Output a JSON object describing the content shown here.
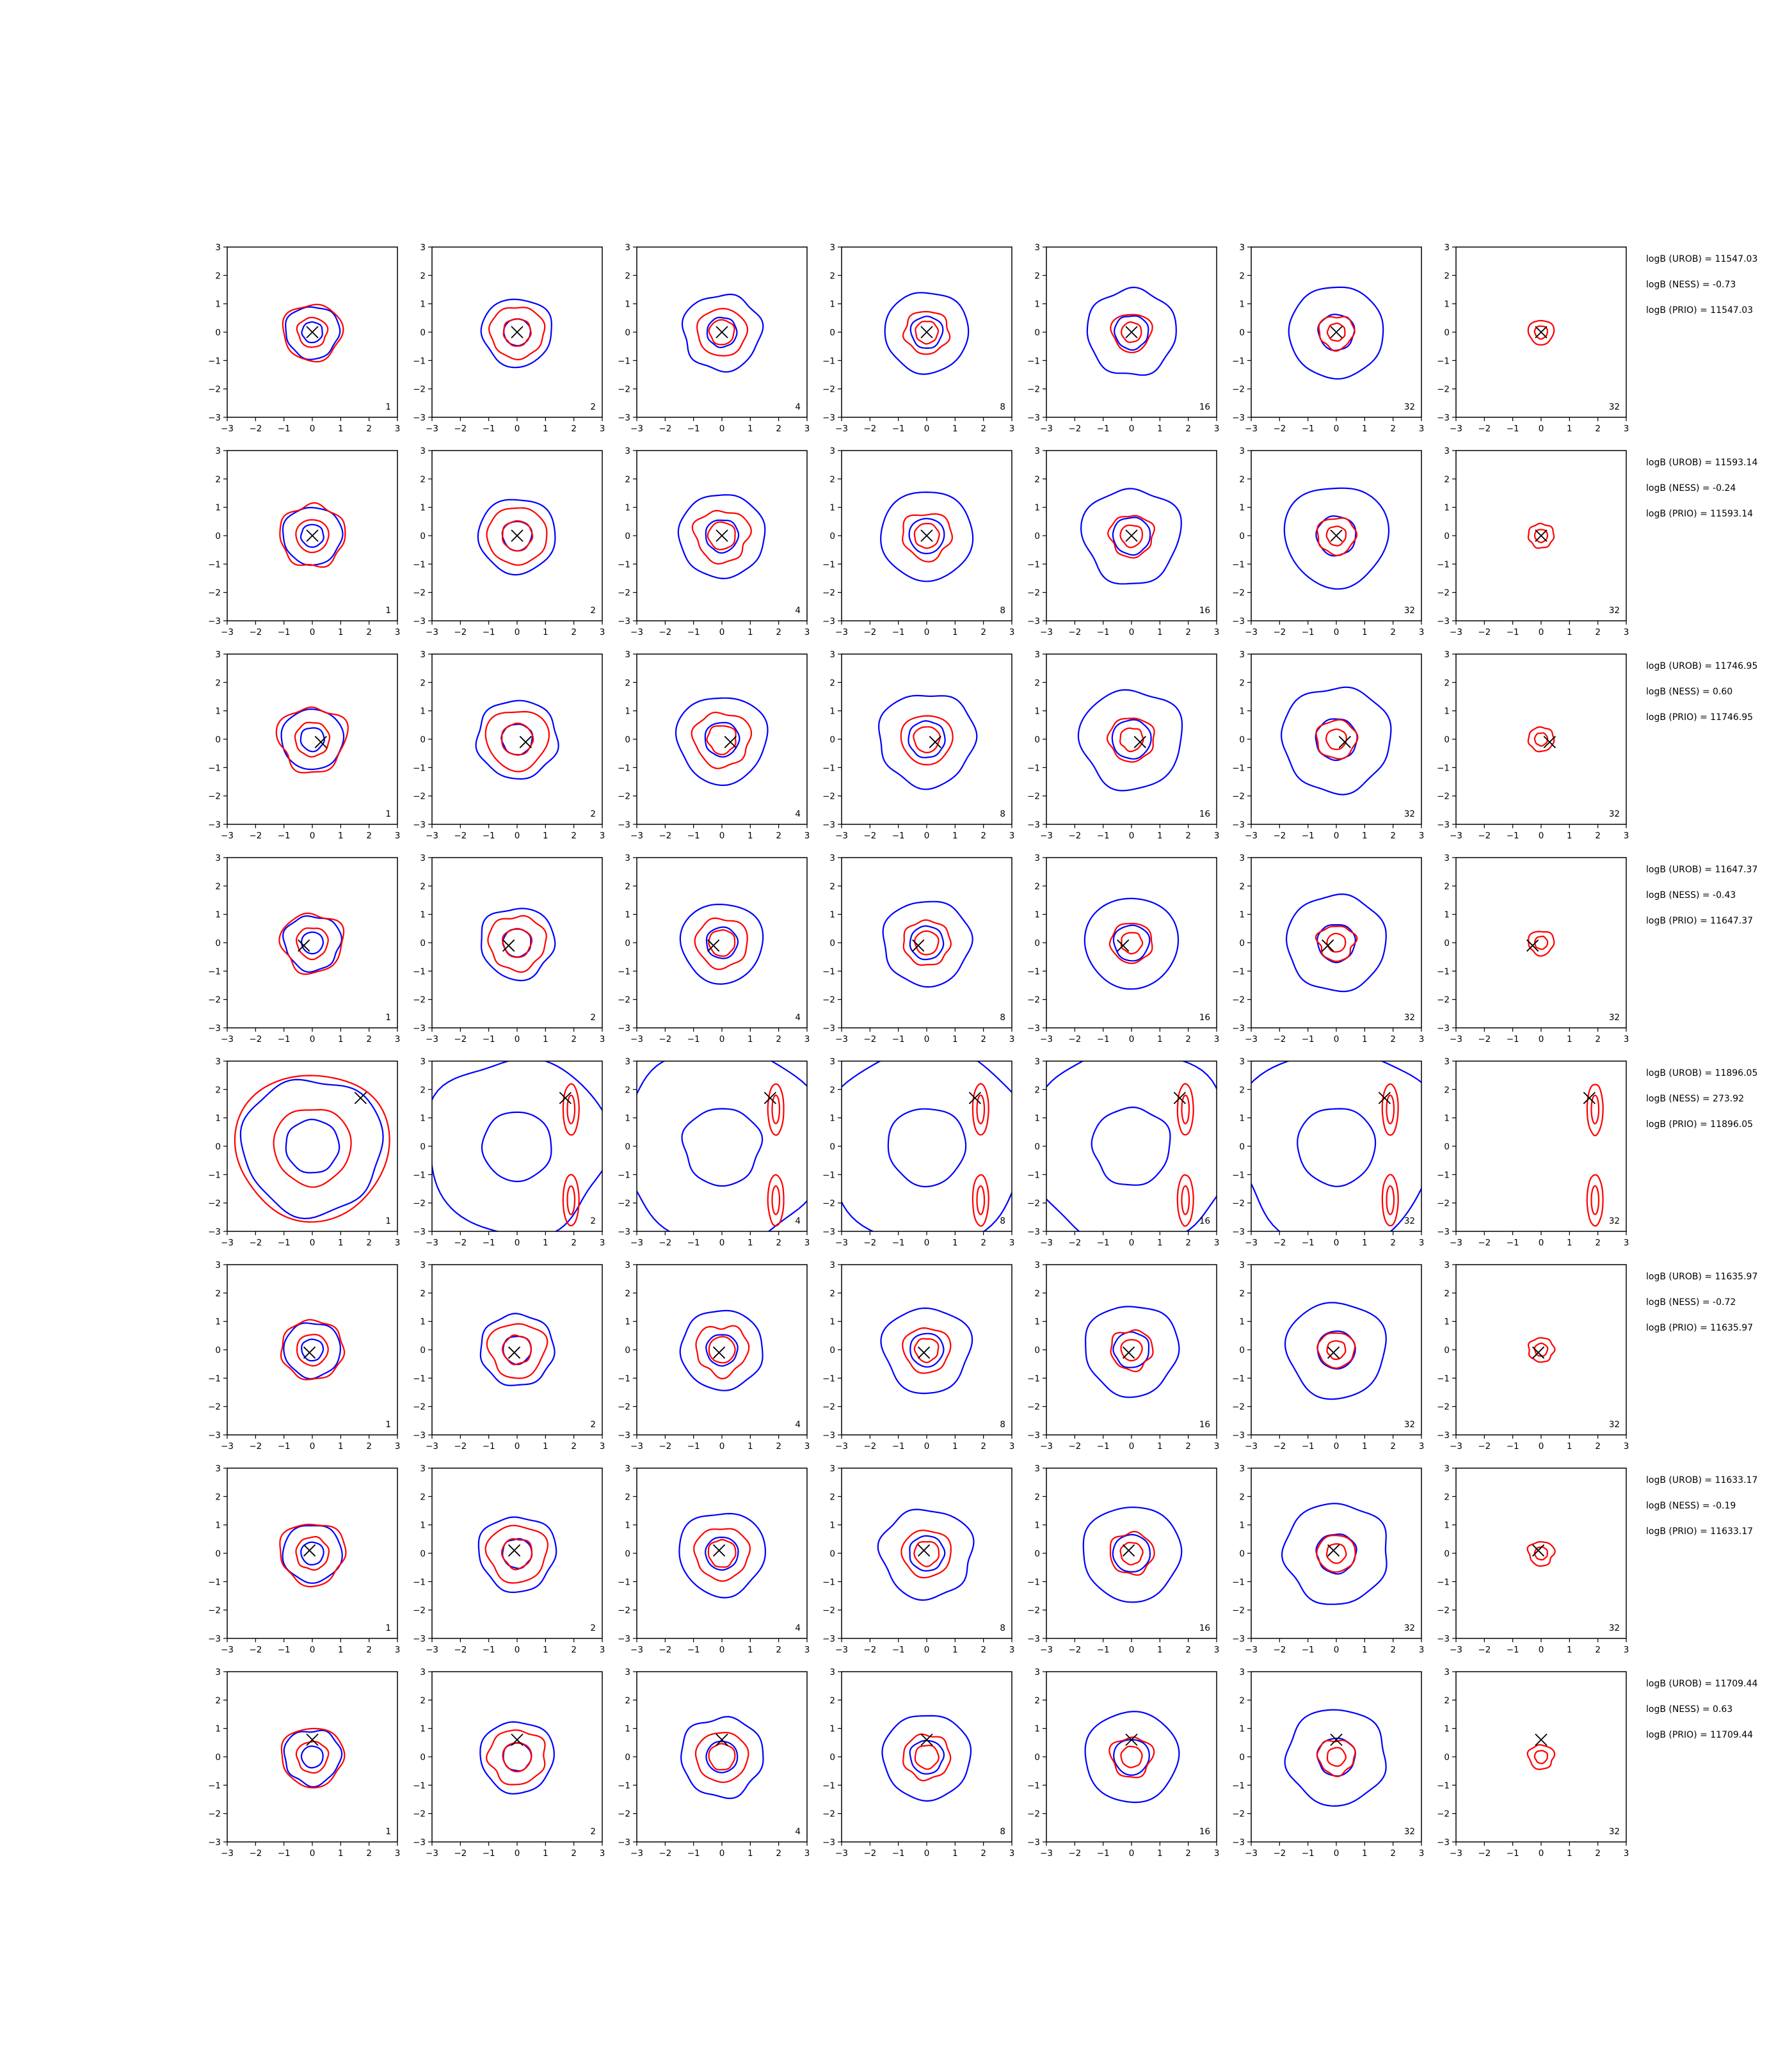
{
  "chart_data": {
    "type": "contour-grid",
    "xlim": [
      -3,
      3
    ],
    "ylim": [
      -3,
      3
    ],
    "ticks": [
      "−3",
      "−2",
      "−1",
      "0",
      "1",
      "2",
      "3"
    ],
    "columns": [
      {
        "label": "1"
      },
      {
        "label": "2"
      },
      {
        "label": "4"
      },
      {
        "label": "8"
      },
      {
        "label": "16"
      },
      {
        "label": "32"
      },
      {
        "label": "32"
      }
    ],
    "series_colors": {
      "outer_contour": "#0000ff",
      "inner_contour": "#ff0000",
      "marker": "#000000"
    },
    "rows": [
      {
        "marker": [
          0.0,
          0.0
        ],
        "spread": 1.0,
        "stats": [
          "logB (UROB) = 11547.03",
          "logB (NESS) = -0.73",
          "logB (PRIO) = 11547.03"
        ]
      },
      {
        "marker": [
          0.0,
          0.0
        ],
        "spread": 1.1,
        "stats": [
          "logB (UROB) = 11593.14",
          "logB (NESS) = -0.24",
          "logB (PRIO) = 11593.14"
        ]
      },
      {
        "marker": [
          0.3,
          -0.1
        ],
        "spread": 1.15,
        "stats": [
          "logB (UROB) = 11746.95",
          "logB (NESS) = 0.60",
          "logB (PRIO) = 11746.95"
        ]
      },
      {
        "marker": [
          -0.3,
          -0.1
        ],
        "spread": 1.05,
        "stats": [
          "logB (UROB) = 11647.37",
          "logB (NESS) = -0.43",
          "logB (PRIO) = 11647.37"
        ]
      },
      {
        "marker": [
          1.7,
          1.7
        ],
        "spread": 2.6,
        "stats": [
          "logB (UROB) = 11896.05",
          "logB (NESS) = 273.92",
          "logB (PRIO) = 11896.05"
        ]
      },
      {
        "marker": [
          -0.1,
          -0.1
        ],
        "spread": 1.05,
        "stats": [
          "logB (UROB) = 11635.97",
          "logB (NESS) = -0.72",
          "logB (PRIO) = 11635.97"
        ]
      },
      {
        "marker": [
          -0.1,
          0.1
        ],
        "spread": 1.1,
        "stats": [
          "logB (UROB) = 11633.17",
          "logB (NESS) = -0.19",
          "logB (PRIO) = 11633.17"
        ]
      },
      {
        "marker": [
          0.0,
          0.6
        ],
        "spread": 1.05,
        "stats": [
          "logB (UROB) = 11709.44",
          "logB (NESS) = 0.63",
          "logB (PRIO) = 11709.44"
        ]
      }
    ]
  }
}
